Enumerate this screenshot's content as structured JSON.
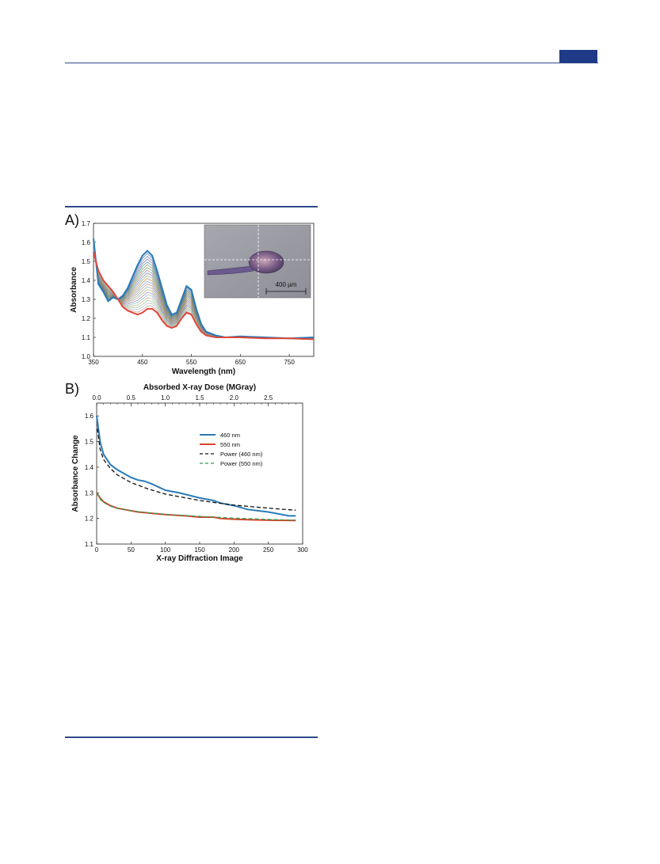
{
  "panel_a": {
    "label": "A)",
    "inset": {
      "scale_bar_label": "400 µm"
    }
  },
  "panel_b": {
    "label": "B)"
  },
  "chart_data": [
    {
      "type": "line",
      "xlabel": "Wavelength (nm)",
      "ylabel": "Absorbance",
      "xlim": [
        350,
        800
      ],
      "ylim": [
        1.0,
        1.7
      ],
      "xticks": [
        350,
        450,
        550,
        650,
        750
      ],
      "yticks": [
        1.0,
        1.1,
        1.2,
        1.3,
        1.4,
        1.5,
        1.6,
        1.7
      ],
      "series_count_note": "family of spectra recorded at successive X-ray doses",
      "series": [
        {
          "color": "#2a7ab8",
          "x": [
            350,
            360,
            370,
            380,
            390,
            400,
            410,
            420,
            430,
            440,
            450,
            460,
            470,
            480,
            490,
            500,
            510,
            520,
            530,
            540,
            550,
            560,
            570,
            580,
            600,
            620,
            650,
            700,
            750,
            800
          ],
          "y": [
            1.62,
            1.38,
            1.34,
            1.29,
            1.31,
            1.3,
            1.32,
            1.36,
            1.42,
            1.48,
            1.53,
            1.555,
            1.53,
            1.45,
            1.36,
            1.27,
            1.22,
            1.23,
            1.3,
            1.37,
            1.35,
            1.25,
            1.17,
            1.13,
            1.11,
            1.1,
            1.105,
            1.1,
            1.095,
            1.1
          ]
        },
        {
          "color": "#e0483a",
          "x": [
            350,
            360,
            370,
            380,
            390,
            400,
            410,
            420,
            430,
            440,
            450,
            460,
            470,
            480,
            490,
            500,
            510,
            520,
            530,
            540,
            550,
            560,
            570,
            580,
            600,
            620,
            650,
            700,
            750,
            800
          ],
          "y": [
            1.55,
            1.45,
            1.4,
            1.37,
            1.34,
            1.3,
            1.26,
            1.24,
            1.23,
            1.22,
            1.23,
            1.25,
            1.25,
            1.23,
            1.19,
            1.16,
            1.15,
            1.16,
            1.2,
            1.23,
            1.22,
            1.17,
            1.13,
            1.11,
            1.1,
            1.1,
            1.1,
            1.095,
            1.095,
            1.09
          ]
        }
      ]
    },
    {
      "type": "line",
      "title": "Absorbed X-ray Dose (MGray)",
      "xlabel": "X-ray Diffraction Image",
      "ylabel": "Absorbance Change",
      "xlim": [
        0,
        300
      ],
      "ylim": [
        1.1,
        1.65
      ],
      "xticks": [
        0,
        50,
        100,
        150,
        200,
        250,
        300
      ],
      "yticks": [
        1.1,
        1.2,
        1.3,
        1.4,
        1.5,
        1.6
      ],
      "top_axis": {
        "xlim": [
          0.0,
          3.0
        ],
        "ticks": [
          "0.0",
          "0.5",
          "1.0",
          "1.5",
          "2.0",
          "2.5"
        ]
      },
      "legend_position": "right",
      "series": [
        {
          "name": "460 nm",
          "color": "#2a7ab8",
          "dash": false,
          "x": [
            0,
            5,
            10,
            20,
            30,
            40,
            50,
            60,
            70,
            80,
            100,
            120,
            150,
            170,
            180,
            200,
            220,
            250,
            280,
            290
          ],
          "y": [
            1.6,
            1.5,
            1.45,
            1.41,
            1.39,
            1.375,
            1.36,
            1.35,
            1.345,
            1.335,
            1.31,
            1.3,
            1.28,
            1.27,
            1.26,
            1.25,
            1.235,
            1.225,
            1.21,
            1.21
          ]
        },
        {
          "name": "550 nm",
          "color": "#d9432f",
          "dash": false,
          "x": [
            0,
            5,
            10,
            20,
            30,
            40,
            50,
            60,
            80,
            100,
            130,
            150,
            170,
            180,
            200,
            220,
            250,
            290
          ],
          "y": [
            1.3,
            1.28,
            1.265,
            1.25,
            1.24,
            1.235,
            1.23,
            1.225,
            1.22,
            1.215,
            1.21,
            1.205,
            1.205,
            1.2,
            1.197,
            1.195,
            1.193,
            1.192
          ]
        },
        {
          "name": "Power (460 nm)",
          "color": "#111111",
          "dash": true,
          "x": [
            1,
            5,
            10,
            20,
            30,
            50,
            75,
            100,
            150,
            200,
            250,
            290
          ],
          "y": [
            1.55,
            1.47,
            1.43,
            1.395,
            1.37,
            1.34,
            1.315,
            1.295,
            1.27,
            1.252,
            1.24,
            1.232
          ]
        },
        {
          "name": "Power (550 nm)",
          "color": "#2e9e4e",
          "dash": true,
          "x": [
            1,
            5,
            10,
            20,
            30,
            50,
            75,
            100,
            150,
            200,
            250,
            290
          ],
          "y": [
            1.3,
            1.275,
            1.262,
            1.248,
            1.24,
            1.23,
            1.222,
            1.216,
            1.208,
            1.201,
            1.196,
            1.193
          ]
        }
      ]
    }
  ]
}
